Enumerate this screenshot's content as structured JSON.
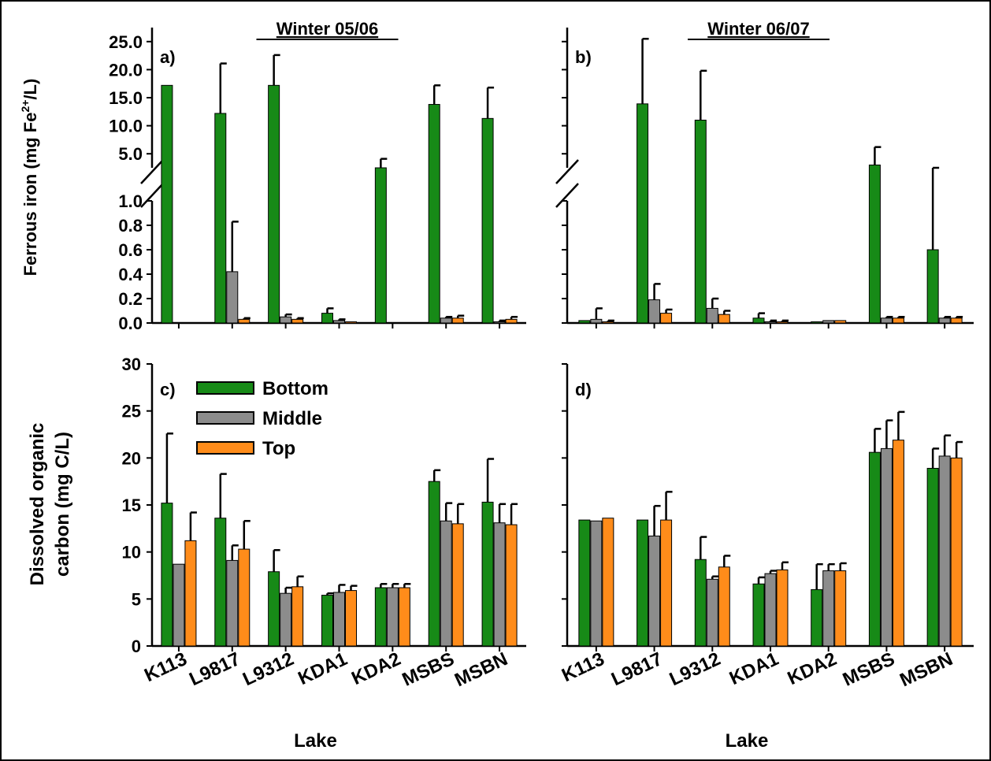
{
  "chart_data": [
    {
      "id": "a",
      "type": "bar",
      "panel_label": "a)",
      "title": "Winter 05/06",
      "xlabel": "",
      "ylabel": "Ferrous iron (mg Fe²⁺/L)",
      "ylabel_main": "Ferrous iron (mg Fe",
      "ylabel_sup": "2+",
      "ylabel_tail": "/L)",
      "axis_break": true,
      "ylim_lower": [
        0,
        1.0
      ],
      "ylim_upper": [
        2.5,
        27.5
      ],
      "ticks_lower": [
        "0.0",
        "0.2",
        "0.4",
        "0.6",
        "0.8",
        "1.0"
      ],
      "ticks_upper": [
        "5.0",
        "10.0",
        "15.0",
        "20.0",
        "25.0"
      ],
      "categories": [
        "K113",
        "L9817",
        "L9312",
        "KDA1",
        "KDA2",
        "MSBS",
        "MSBN"
      ],
      "series": [
        {
          "name": "Bottom",
          "values": [
            17.2,
            12.2,
            17.2,
            0.08,
            1.6,
            13.8,
            11.3
          ],
          "errors": [
            0,
            8.9,
            5.4,
            0.04,
            2.5,
            3.4,
            5.5
          ]
        },
        {
          "name": "Middle",
          "values": [
            0,
            0.42,
            0.05,
            0.02,
            0,
            0.04,
            0.01
          ],
          "errors": [
            0,
            0.41,
            0.02,
            0.01,
            0,
            0.01,
            0.01
          ]
        },
        {
          "name": "Top",
          "values": [
            0,
            0.03,
            0.03,
            0.01,
            0,
            0.04,
            0.03
          ],
          "errors": [
            0,
            0.01,
            0.01,
            0.005,
            0,
            0.02,
            0.02
          ]
        }
      ]
    },
    {
      "id": "b",
      "type": "bar",
      "panel_label": "b)",
      "title": "Winter 06/07",
      "xlabel": "",
      "ylabel": "",
      "axis_break": true,
      "ylim_lower": [
        0,
        1.0
      ],
      "ylim_upper": [
        2.5,
        27.5
      ],
      "categories": [
        "K113",
        "L9817",
        "L9312",
        "KDA1",
        "KDA2",
        "MSBS",
        "MSBN"
      ],
      "series": [
        {
          "name": "Bottom",
          "values": [
            0.02,
            13.9,
            11.0,
            0.04,
            0.01,
            3.0,
            0.6
          ],
          "errors": [
            0,
            11.6,
            8.8,
            0.04,
            0.005,
            3.2,
            1.3
          ]
        },
        {
          "name": "Middle",
          "values": [
            0.03,
            0.19,
            0.12,
            0.01,
            0.02,
            0.04,
            0.04
          ],
          "errors": [
            0.09,
            0.13,
            0.08,
            0.01,
            0.005,
            0.01,
            0.01
          ]
        },
        {
          "name": "Top",
          "values": [
            0.01,
            0.08,
            0.07,
            0.01,
            0.02,
            0.04,
            0.04
          ],
          "errors": [
            0.01,
            0.03,
            0.03,
            0.01,
            0.005,
            0.01,
            0.01
          ]
        }
      ]
    },
    {
      "id": "c",
      "type": "bar",
      "panel_label": "c)",
      "title": "",
      "xlabel": "Lake",
      "ylabel": "Dissolved organic carbon (mg C/L)",
      "ylabel_line1": "Dissolved organic",
      "ylabel_line2": "carbon (mg C/L)",
      "ylim": [
        0,
        30
      ],
      "ticks": [
        "0",
        "5",
        "10",
        "15",
        "20",
        "25",
        "30"
      ],
      "categories": [
        "K113",
        "L9817",
        "L9312",
        "KDA1",
        "KDA2",
        "MSBS",
        "MSBN"
      ],
      "series": [
        {
          "name": "Bottom",
          "values": [
            15.2,
            13.6,
            7.9,
            5.4,
            6.2,
            17.5,
            15.3
          ],
          "errors": [
            7.4,
            4.7,
            2.3,
            0.2,
            0.4,
            1.2,
            4.6
          ]
        },
        {
          "name": "Middle",
          "values": [
            8.7,
            9.1,
            5.6,
            5.7,
            6.2,
            13.3,
            13.1
          ],
          "errors": [
            0,
            1.6,
            0.6,
            0.8,
            0.4,
            1.9,
            2.0
          ]
        },
        {
          "name": "Top",
          "values": [
            11.2,
            10.3,
            6.3,
            5.9,
            6.2,
            13.0,
            12.9
          ],
          "errors": [
            3.0,
            3.0,
            1.1,
            0.5,
            0.4,
            2.1,
            2.2
          ]
        }
      ]
    },
    {
      "id": "d",
      "type": "bar",
      "panel_label": "d)",
      "title": "",
      "xlabel": "Lake",
      "ylabel": "",
      "ylim": [
        0,
        30
      ],
      "categories": [
        "K113",
        "L9817",
        "L9312",
        "KDA1",
        "KDA2",
        "MSBS",
        "MSBN"
      ],
      "series": [
        {
          "name": "Bottom",
          "values": [
            13.4,
            13.4,
            9.2,
            6.6,
            6.0,
            20.6,
            18.9
          ],
          "errors": [
            0,
            0,
            2.4,
            0.7,
            2.7,
            2.5,
            2.1
          ]
        },
        {
          "name": "Middle",
          "values": [
            13.3,
            11.7,
            7.1,
            7.7,
            8.0,
            21.0,
            20.2
          ],
          "errors": [
            0,
            3.2,
            0.3,
            0.3,
            0.7,
            3.0,
            2.2
          ]
        },
        {
          "name": "Top",
          "values": [
            13.6,
            13.4,
            8.4,
            8.1,
            8.0,
            21.9,
            20.0
          ],
          "errors": [
            0,
            3.0,
            1.2,
            0.8,
            0.8,
            3.0,
            1.7
          ]
        }
      ]
    }
  ],
  "legend": {
    "placement": "top-left of panel c",
    "entries": [
      {
        "name": "Bottom",
        "color": "#178A17"
      },
      {
        "name": "Middle",
        "color": "#8C8C8C"
      },
      {
        "name": "Top",
        "color": "#FF8C1A"
      }
    ]
  },
  "colors": {
    "Bottom": "#178A17",
    "Middle": "#8C8C8C",
    "Top": "#FF8C1A"
  }
}
